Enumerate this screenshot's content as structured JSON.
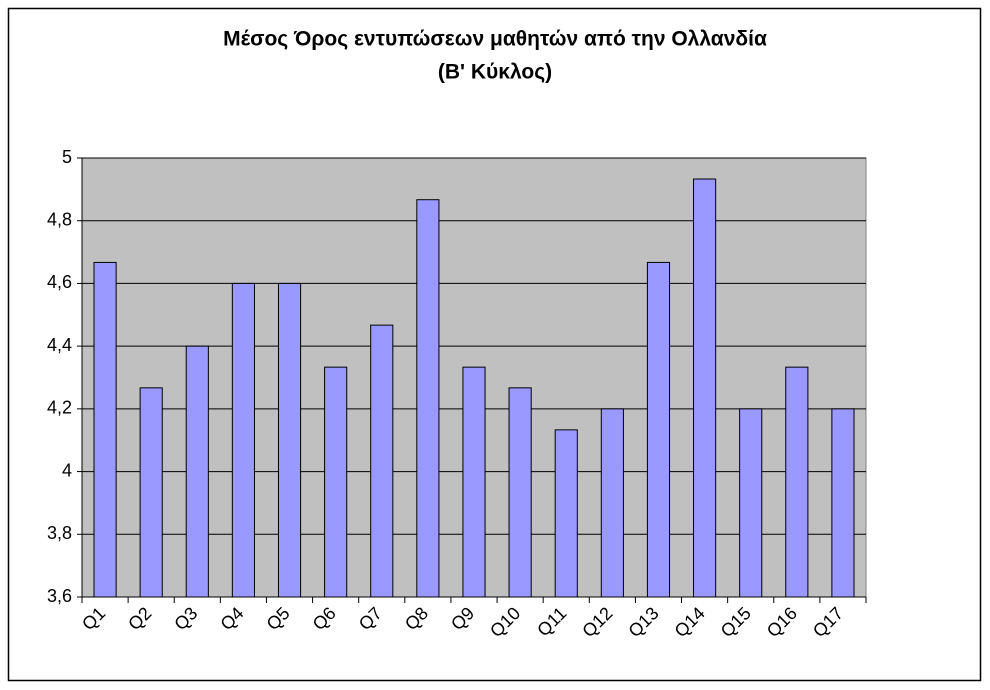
{
  "chart_data": {
    "type": "bar",
    "title": [
      "Μέσος Όρος εντυπώσεων μαθητών από την Ολλανδία",
      "(Β' Κύκλος)"
    ],
    "categories": [
      "Q1",
      "Q2",
      "Q3",
      "Q4",
      "Q5",
      "Q6",
      "Q7",
      "Q8",
      "Q9",
      "Q10",
      "Q11",
      "Q12",
      "Q13",
      "Q14",
      "Q15",
      "Q16",
      "Q17"
    ],
    "values": [
      4.667,
      4.267,
      4.4,
      4.6,
      4.6,
      4.333,
      4.467,
      4.867,
      4.333,
      4.267,
      4.133,
      4.2,
      4.667,
      4.933,
      4.2,
      4.333,
      4.2
    ],
    "color": "#9999ff",
    "ylim": [
      3.6,
      5
    ],
    "yticks": [
      {
        "value": 3.6,
        "label": "3,6"
      },
      {
        "value": 3.8,
        "label": "3,8"
      },
      4,
      {
        "value": 4.2,
        "label": "4,2"
      },
      {
        "value": 4.4,
        "label": "4,4"
      },
      {
        "value": 4.6,
        "label": "4,6"
      },
      {
        "value": 4.8,
        "label": "4,8"
      },
      5
    ],
    "grid": true
  }
}
